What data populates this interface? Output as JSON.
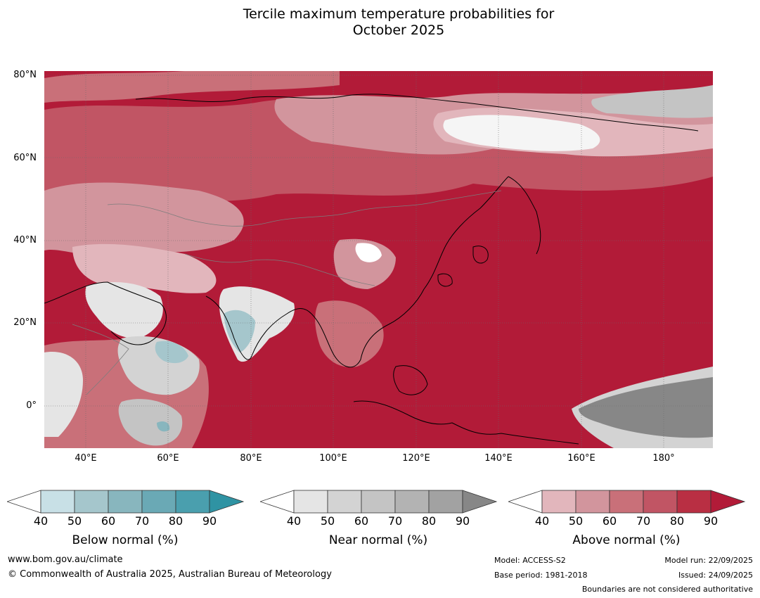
{
  "title": {
    "line1": "Tercile maximum temperature probabilities for",
    "line2": "October 2025"
  },
  "map": {
    "lat_labels": [
      "80°N",
      "60°N",
      "40°N",
      "20°N",
      "0°"
    ],
    "lon_labels": [
      "40°E",
      "60°E",
      "80°E",
      "100°E",
      "120°E",
      "140°E",
      "160°E",
      "180°"
    ],
    "extent": {
      "lon_min": 30,
      "lon_max": 192,
      "lat_min": -10,
      "lat_max": 81
    }
  },
  "legends": [
    {
      "title": "Below normal (%)",
      "ticks": [
        "40",
        "50",
        "60",
        "70",
        "80",
        "90"
      ],
      "colors": [
        "#ffffff",
        "#c8e0e6",
        "#a5c6cc",
        "#88b6be",
        "#6aa9b5",
        "#4a9fae",
        "#2f93a3"
      ]
    },
    {
      "title": "Near normal (%)",
      "ticks": [
        "40",
        "50",
        "60",
        "70",
        "80",
        "90"
      ],
      "colors": [
        "#ffffff",
        "#e5e5e5",
        "#d3d3d3",
        "#c4c4c4",
        "#b3b3b3",
        "#a2a2a2",
        "#878787"
      ]
    },
    {
      "title": "Above normal (%)",
      "ticks": [
        "40",
        "50",
        "60",
        "70",
        "80",
        "90"
      ],
      "colors": [
        "#ffffff",
        "#e2b6bc",
        "#d2959d",
        "#c97079",
        "#c15564",
        "#b92f43",
        "#b21b38"
      ]
    }
  ],
  "footer": {
    "website": "www.bom.gov.au/climate",
    "copyright": "© Commonwealth of Australia 2025, Australian Bureau of Meteorology",
    "model": "Model: ACCESS-S2",
    "base_period": "Base period: 1981-2018",
    "model_run": "Model run: 22/09/2025",
    "issued": "Issued: 24/09/2025",
    "disclaimer": "Boundaries are not considered authoritative"
  }
}
